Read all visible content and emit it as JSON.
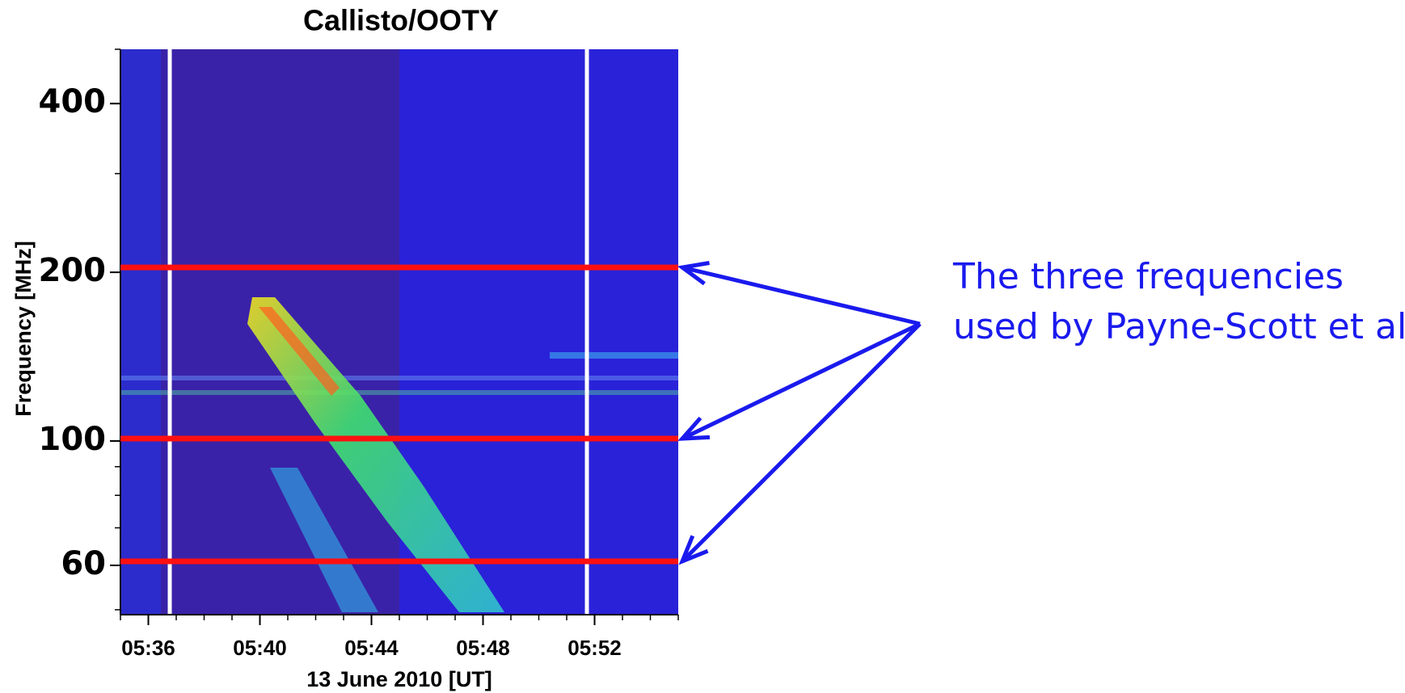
{
  "chart_data": {
    "type": "spectrogram",
    "title": "Callisto/OOTY",
    "xlabel": "13 June 2010 [UT]",
    "ylabel": "Frequency [MHz]",
    "xlim": [
      "05:35",
      "05:55"
    ],
    "xticks": [
      "05:36",
      "05:40",
      "05:44",
      "05:48",
      "05:52"
    ],
    "ylim": [
      49,
      500
    ],
    "yticks": [
      60,
      100,
      200,
      400
    ],
    "yminorticks": [
      50,
      70,
      80,
      90,
      300,
      500
    ],
    "ylog": true,
    "marked_frequencies": {
      "color": "#ff1010",
      "values": [
        61,
        101,
        204
      ]
    },
    "annotation": {
      "lines": [
        "The three frequencies",
        "used by Payne-Scott et al"
      ],
      "color": "#1a1aee"
    }
  }
}
